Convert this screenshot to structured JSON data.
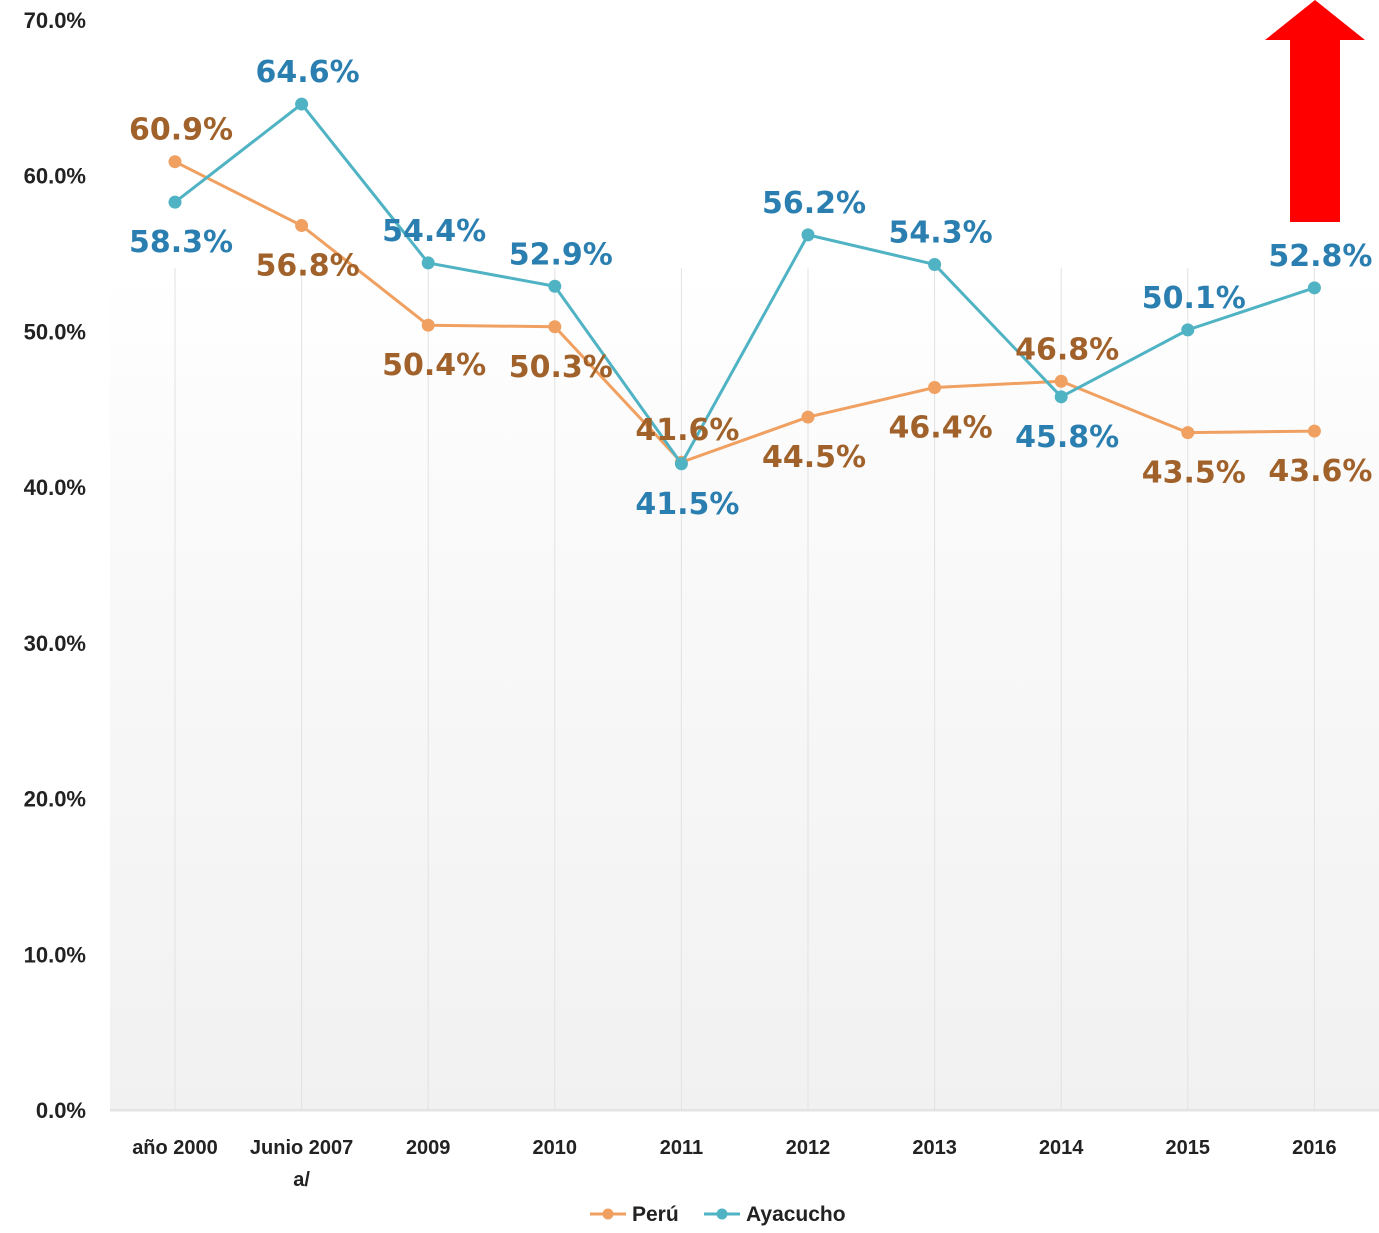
{
  "chart_data": {
    "type": "line",
    "categories": [
      [
        "año 2000"
      ],
      [
        "Junio 2007",
        "a/"
      ],
      [
        "2009"
      ],
      [
        "2010"
      ],
      [
        "2011"
      ],
      [
        "2012"
      ],
      [
        "2013"
      ],
      [
        "2014"
      ],
      [
        "2015"
      ],
      [
        "2016"
      ]
    ],
    "series": [
      {
        "name": "Perú",
        "color": "#f0a060",
        "label_color": "#a0622a",
        "values": [
          60.9,
          56.8,
          50.4,
          50.3,
          41.6,
          44.5,
          46.4,
          46.8,
          43.5,
          43.6
        ],
        "labels": [
          "60.9%",
          "56.8%",
          "50.4%",
          "50.3%",
          "41.6%",
          "44.5%",
          "46.4%",
          "46.8%",
          "43.5%",
          "43.6%"
        ]
      },
      {
        "name": "Ayacucho",
        "color": "#4fb3c4",
        "label_color": "#2a7fb0",
        "values": [
          58.3,
          64.6,
          54.4,
          52.9,
          41.5,
          56.2,
          54.3,
          45.8,
          50.1,
          52.8
        ],
        "labels": [
          "58.3%",
          "64.6%",
          "54.4%",
          "52.9%",
          "41.5%",
          "56.2%",
          "54.3%",
          "45.8%",
          "50.1%",
          "52.8%"
        ]
      }
    ],
    "y_ticks": [
      "0.0%",
      "10.0%",
      "20.0%",
      "30.0%",
      "40.0%",
      "50.0%",
      "60.0%",
      "70.0%"
    ],
    "ylim": [
      0,
      70
    ],
    "grid": "vertical",
    "legend": "bottom-center",
    "annotation": {
      "type": "arrow",
      "direction": "up",
      "color": "#ff0000"
    }
  }
}
